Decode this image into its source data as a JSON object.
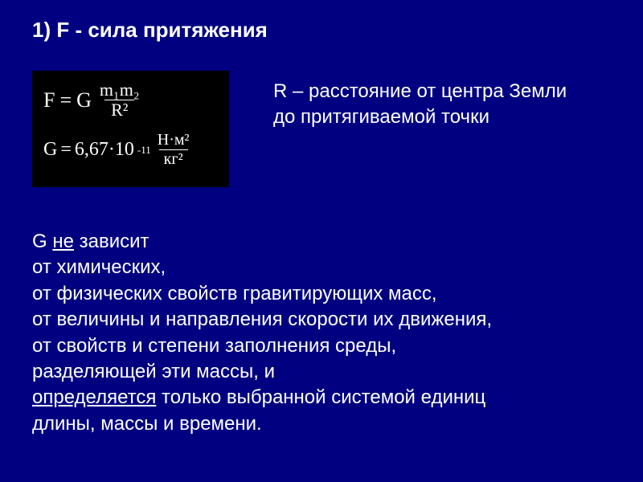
{
  "heading": "1) F  - сила притяжения",
  "formula_box": {
    "eq1_lhs": "F",
    "eq1_eq": "=",
    "eq1_G": "G",
    "eq1_num": "m₁m₂",
    "eq1_den": "R²",
    "eq2_lhs": "G",
    "eq2_eq": "=",
    "eq2_coeff": "6,67·10",
    "eq2_exp": "-11",
    "eq2_unit_num": "Н·м²",
    "eq2_unit_den": "кг²"
  },
  "r_note_line1": "R – расстояние от центра Земли",
  "r_note_line2": "до притягиваемой точки",
  "body": {
    "l1_a": "G ",
    "l1_b": "не",
    "l1_c": " зависит",
    "l2": "от химических,",
    "l3": "от физических свойств гравитирующих масс,",
    "l4": "от величины и направления скорости их движения,",
    "l5": "от свойств и степени заполнения среды,",
    "l6": "разделяющей эти массы, и",
    "l7_a": "определяется",
    "l7_b": " только выбранной системой единиц",
    "l8": "длины, массы и времени."
  },
  "colors": {
    "background": "#000080",
    "text": "#ffffff",
    "formula_bg": "#000000"
  },
  "typography": {
    "heading_fontsize": 26,
    "body_fontsize": 24,
    "formula_fontsize": 26
  }
}
